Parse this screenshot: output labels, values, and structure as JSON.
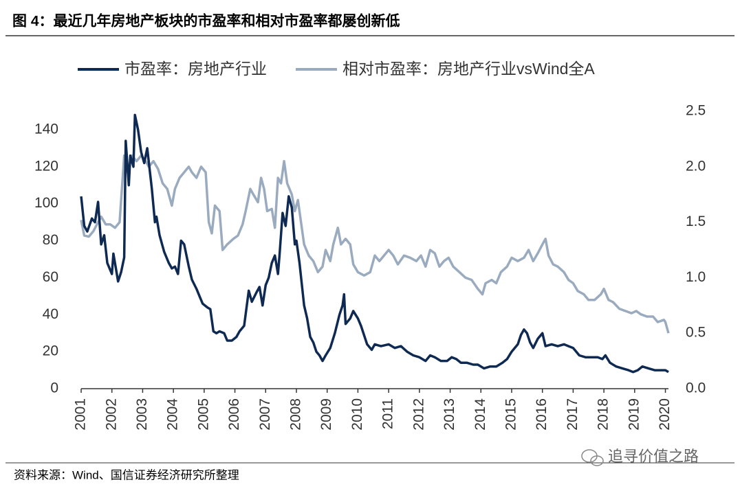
{
  "chart_data": {
    "type": "line",
    "title": "图 4：最近几年房地产板块的市盈率和相对市盈率都屡创新低",
    "source": "资料来源：Wind、国信证券经济研究所整理",
    "watermark": "追寻价值之路",
    "xlim": [
      2001,
      2020.1
    ],
    "xticks": [
      2001,
      2002,
      2003,
      2004,
      2005,
      2006,
      2007,
      2008,
      2009,
      2010,
      2011,
      2012,
      2013,
      2014,
      2015,
      2016,
      2017,
      2018,
      2019,
      2020
    ],
    "ylim": [
      0,
      150
    ],
    "yticks": [
      0,
      20,
      40,
      60,
      80,
      100,
      120,
      140
    ],
    "y2lim": [
      0,
      2.5
    ],
    "y2ticks": [
      {
        "value": 0,
        "label": "0.0"
      },
      0.5,
      {
        "value": 1,
        "label": "1.0"
      },
      1.5,
      {
        "value": 2,
        "label": "2.0"
      },
      2.5
    ],
    "legend": "top",
    "series": [
      {
        "name": "市盈率：房地产行业",
        "color": "#0e2a52",
        "x": [
          2001.0,
          2001.1,
          2001.2,
          2001.35,
          2001.45,
          2001.55,
          2001.65,
          2001.75,
          2001.85,
          2002.0,
          2002.05,
          2002.2,
          2002.3,
          2002.4,
          2002.45,
          2002.55,
          2002.6,
          2002.7,
          2002.75,
          2002.85,
          2002.95,
          2003.05,
          2003.15,
          2003.3,
          2003.4,
          2003.45,
          2003.55,
          2003.7,
          2003.85,
          2003.95,
          2004.05,
          2004.15,
          2004.25,
          2004.35,
          2004.5,
          2004.6,
          2004.75,
          2004.85,
          2004.95,
          2005.1,
          2005.2,
          2005.3,
          2005.4,
          2005.5,
          2005.65,
          2005.75,
          2005.9,
          2006.05,
          2006.15,
          2006.3,
          2006.45,
          2006.55,
          2006.7,
          2006.8,
          2006.9,
          2007.0,
          2007.1,
          2007.2,
          2007.3,
          2007.4,
          2007.45,
          2007.55,
          2007.65,
          2007.75,
          2007.85,
          2007.95,
          2008.0,
          2008.1,
          2008.25,
          2008.35,
          2008.45,
          2008.55,
          2008.65,
          2008.75,
          2008.85,
          2008.95,
          2009.1,
          2009.25,
          2009.4,
          2009.5,
          2009.55,
          2009.6,
          2009.75,
          2009.85,
          2010.0,
          2010.1,
          2010.3,
          2010.45,
          2010.55,
          2010.75,
          2011.0,
          2011.2,
          2011.4,
          2011.6,
          2011.8,
          2012.0,
          2012.2,
          2012.35,
          2012.5,
          2012.7,
          2012.9,
          2013.05,
          2013.2,
          2013.35,
          2013.55,
          2013.75,
          2013.9,
          2014.1,
          2014.3,
          2014.5,
          2014.7,
          2014.85,
          2015.0,
          2015.2,
          2015.3,
          2015.4,
          2015.5,
          2015.6,
          2015.7,
          2015.85,
          2016.0,
          2016.1,
          2016.3,
          2016.5,
          2016.7,
          2016.85,
          2017.0,
          2017.2,
          2017.4,
          2017.6,
          2017.8,
          2017.95,
          2018.05,
          2018.2,
          2018.4,
          2018.6,
          2018.8,
          2018.95,
          2019.1,
          2019.25,
          2019.45,
          2019.65,
          2019.85,
          2020.0,
          2020.1
        ],
        "values": [
          104,
          88,
          85,
          92,
          90,
          101,
          78,
          83,
          68,
          62,
          73,
          58,
          63,
          71,
          134,
          110,
          126,
          120,
          148,
          140,
          128,
          122,
          130,
          108,
          90,
          93,
          83,
          74,
          68,
          65,
          66,
          62,
          80,
          78,
          66,
          59,
          54,
          50,
          46,
          44,
          43,
          31,
          30,
          31,
          30,
          26,
          26,
          28,
          31,
          34,
          53,
          47,
          52,
          55,
          45,
          56,
          60,
          68,
          72,
          62,
          72,
          95,
          88,
          104,
          98,
          78,
          80,
          68,
          45,
          38,
          28,
          25,
          20,
          18,
          15,
          18,
          22,
          30,
          40,
          45,
          51,
          35,
          38,
          42,
          38,
          34,
          24,
          21,
          24,
          23,
          24,
          22,
          23,
          20,
          18,
          17,
          15,
          18,
          17,
          15,
          15,
          17,
          16,
          14,
          14,
          13,
          13,
          11,
          12,
          12,
          14,
          16,
          20,
          24,
          29,
          32,
          30,
          25,
          22,
          27,
          30,
          23,
          24,
          23,
          24,
          23,
          22,
          18,
          17,
          17,
          17,
          16,
          18,
          14,
          12,
          11,
          10,
          9,
          10,
          12,
          11,
          10,
          10,
          10,
          9
        ]
      },
      {
        "name": "相对市盈率：房地产行业vsWind全A",
        "color": "#9aabbf",
        "axis": "y2",
        "x": [
          2001.0,
          2001.1,
          2001.25,
          2001.4,
          2001.55,
          2001.65,
          2001.8,
          2001.95,
          2002.1,
          2002.25,
          2002.4,
          2002.5,
          2002.65,
          2002.8,
          2002.95,
          2003.1,
          2003.2,
          2003.35,
          2003.5,
          2003.65,
          2003.8,
          2003.95,
          2004.05,
          2004.2,
          2004.35,
          2004.5,
          2004.6,
          2004.75,
          2004.9,
          2005.05,
          2005.15,
          2005.25,
          2005.35,
          2005.5,
          2005.6,
          2005.75,
          2005.95,
          2006.1,
          2006.25,
          2006.35,
          2006.5,
          2006.6,
          2006.75,
          2006.85,
          2006.95,
          2007.05,
          2007.2,
          2007.3,
          2007.4,
          2007.5,
          2007.6,
          2007.7,
          2007.85,
          2007.95,
          2008.05,
          2008.15,
          2008.25,
          2008.4,
          2008.55,
          2008.7,
          2008.85,
          2008.95,
          2009.1,
          2009.2,
          2009.35,
          2009.45,
          2009.6,
          2009.75,
          2009.85,
          2010.0,
          2010.2,
          2010.4,
          2010.55,
          2010.7,
          2010.85,
          2011.0,
          2011.15,
          2011.3,
          2011.5,
          2011.7,
          2011.9,
          2012.05,
          2012.2,
          2012.35,
          2012.5,
          2012.65,
          2012.8,
          2012.95,
          2013.1,
          2013.3,
          2013.5,
          2013.7,
          2013.9,
          2014.05,
          2014.15,
          2014.35,
          2014.5,
          2014.65,
          2014.85,
          2015.0,
          2015.2,
          2015.4,
          2015.55,
          2015.7,
          2015.85,
          2016.0,
          2016.1,
          2016.2,
          2016.35,
          2016.5,
          2016.7,
          2016.85,
          2017.0,
          2017.15,
          2017.35,
          2017.5,
          2017.7,
          2017.9,
          2018.0,
          2018.15,
          2018.3,
          2018.5,
          2018.7,
          2018.9,
          2019.05,
          2019.2,
          2019.4,
          2019.6,
          2019.75,
          2019.95,
          2020.0,
          2020.1
        ],
        "values": [
          1.52,
          1.38,
          1.37,
          1.42,
          1.5,
          1.55,
          1.48,
          1.48,
          1.45,
          1.5,
          2.1,
          1.95,
          2.1,
          2.05,
          2.1,
          2.05,
          2.0,
          2.05,
          1.98,
          1.85,
          1.8,
          1.65,
          1.8,
          1.9,
          1.95,
          2.0,
          1.95,
          1.9,
          2.0,
          1.95,
          1.5,
          1.4,
          1.65,
          1.6,
          1.25,
          1.3,
          1.35,
          1.38,
          1.48,
          1.6,
          1.8,
          1.75,
          1.68,
          1.9,
          1.8,
          1.6,
          1.62,
          1.45,
          1.9,
          1.85,
          2.05,
          1.85,
          1.75,
          1.6,
          1.7,
          1.5,
          1.3,
          1.2,
          1.15,
          1.05,
          1.1,
          1.25,
          1.15,
          1.3,
          1.45,
          1.3,
          1.35,
          1.3,
          1.12,
          1.05,
          1.02,
          1.05,
          1.2,
          1.15,
          1.2,
          1.25,
          1.2,
          1.12,
          1.2,
          1.18,
          1.15,
          1.2,
          1.1,
          1.25,
          1.22,
          1.1,
          1.15,
          1.18,
          1.1,
          1.05,
          1.0,
          0.98,
          0.9,
          0.85,
          0.95,
          0.98,
          0.95,
          1.05,
          1.1,
          1.18,
          1.15,
          1.18,
          1.25,
          1.15,
          1.22,
          1.3,
          1.35,
          1.2,
          1.12,
          1.1,
          1.05,
          0.98,
          0.95,
          0.88,
          0.85,
          0.8,
          0.8,
          0.85,
          0.9,
          0.8,
          0.78,
          0.72,
          0.7,
          0.68,
          0.7,
          0.67,
          0.65,
          0.65,
          0.6,
          0.62,
          0.6,
          0.5
        ]
      }
    ]
  }
}
